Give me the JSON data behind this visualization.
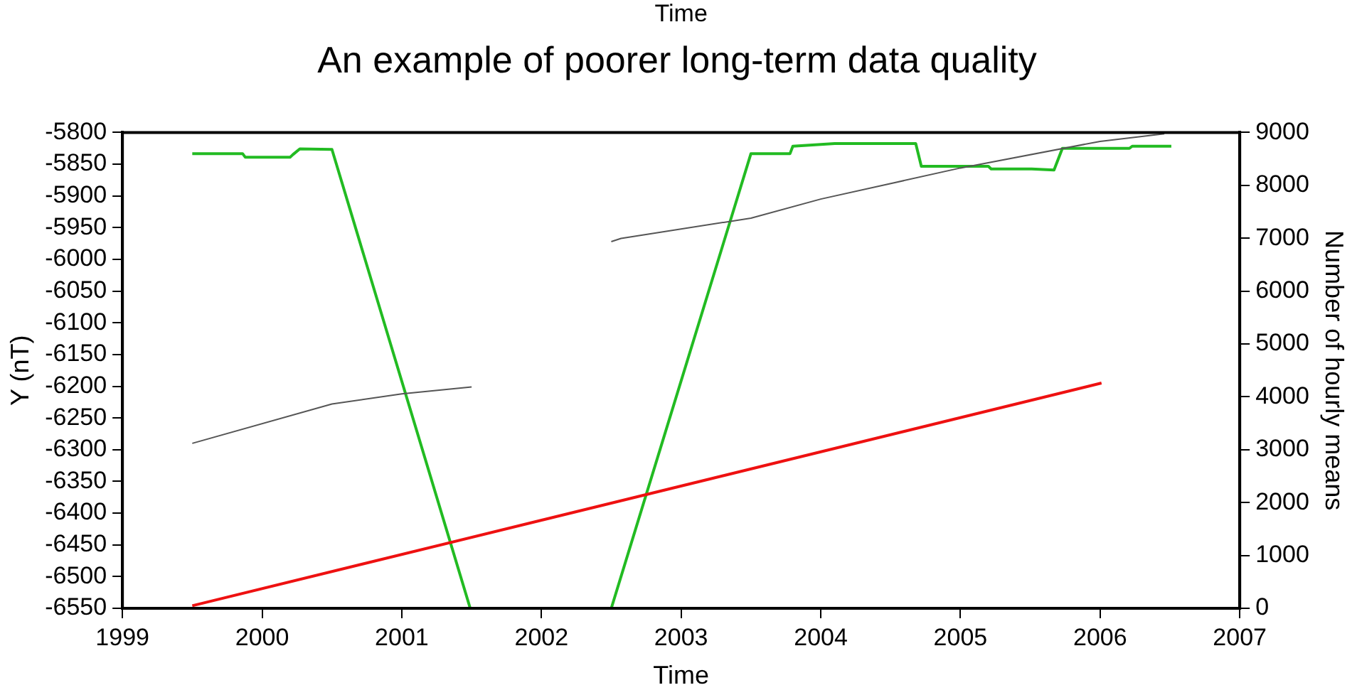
{
  "chart_data": {
    "type": "line",
    "title": "An example of poorer long-term data quality",
    "xlabel": "Time",
    "ylabel": "Y (nT)",
    "y2label": "Number of hourly means",
    "annotations": [
      "Time"
    ],
    "xlim": [
      1999,
      2007
    ],
    "xticks": [
      1999,
      2000,
      2001,
      2002,
      2003,
      2004,
      2005,
      2006,
      2007
    ],
    "ylim": [
      -6550,
      -5800
    ],
    "yticks": [
      -6550,
      -6500,
      -6450,
      -6400,
      -6350,
      -6300,
      -6250,
      -6200,
      -6150,
      -6100,
      -6050,
      -6000,
      -5950,
      -5900,
      -5850,
      -5800
    ],
    "y2lim": [
      0,
      9000
    ],
    "y2ticks": [
      0,
      1000,
      2000,
      3000,
      4000,
      5000,
      6000,
      7000,
      8000,
      9000
    ],
    "grid": false,
    "legend": false,
    "marker": "none",
    "line_style": "solid",
    "series": [
      {
        "color": "#555555",
        "x": [
          1999.5,
          2000.5,
          2001,
          2001.5,
          null,
          2002.5,
          2002.57,
          2003.5,
          2004,
          2005,
          2006,
          2006.46
        ],
        "values": [
          -6290,
          -6228,
          -6212,
          -6201,
          null,
          -5972,
          -5967,
          -5935,
          -5905,
          -5856,
          -5814,
          -5802
        ]
      },
      {
        "color": "#ee1111",
        "x": [
          1999.5,
          2006.01
        ],
        "values": [
          -6546,
          -6195
        ]
      },
      {
        "color": "#22bb22",
        "axis": "y2",
        "x": [
          1999.5,
          1999.86,
          1999.88,
          2000.2,
          2000.22,
          2000.27,
          2000.5,
          2001.49,
          2002.5,
          2003.5,
          2003.78,
          2003.8,
          2004.1,
          2004.68,
          2004.72,
          2005.2,
          2005.22,
          2005.51,
          2005.67,
          2005.73,
          2006.21,
          2006.23,
          2006.51
        ],
        "values": [
          8600,
          8600,
          8530,
          8530,
          8580,
          8690,
          8680,
          0,
          0,
          8600,
          8600,
          8740,
          8790,
          8790,
          8360,
          8360,
          8310,
          8310,
          8290,
          8700,
          8700,
          8740,
          8740
        ]
      }
    ]
  }
}
